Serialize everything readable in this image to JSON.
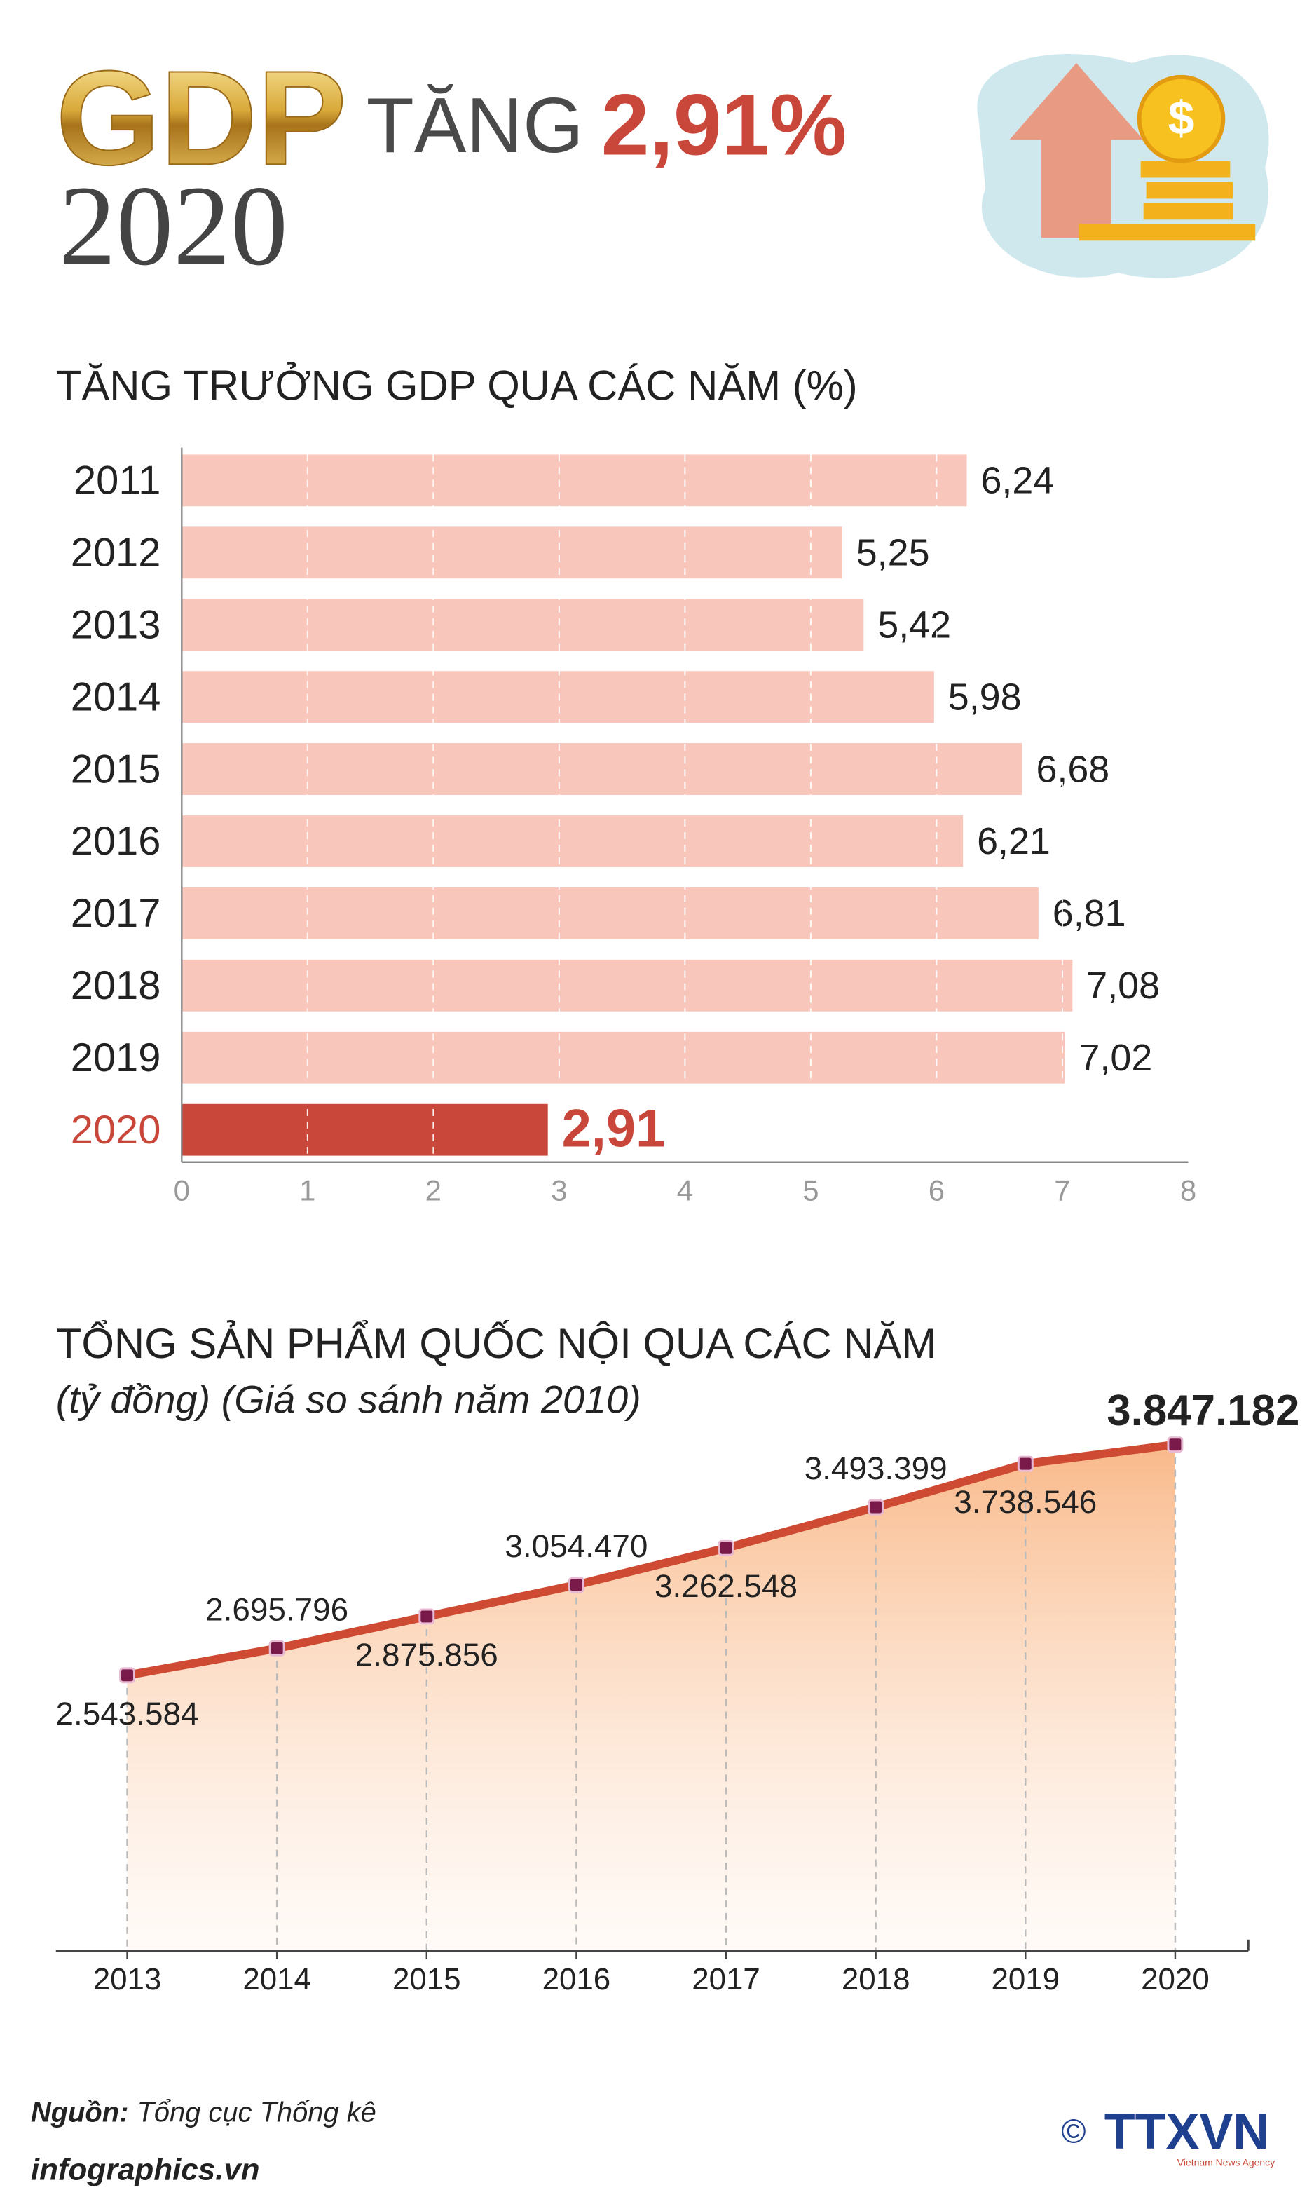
{
  "header": {
    "title": "GDP",
    "year": "2020",
    "prefix": "TĂNG",
    "highlight": "2,91%"
  },
  "chart_data": [
    {
      "type": "bar",
      "title": "TĂNG TRƯỞNG GDP QUA CÁC NĂM (%)",
      "categories": [
        "2011",
        "2012",
        "2013",
        "2014",
        "2015",
        "2016",
        "2017",
        "2018",
        "2019",
        "2020"
      ],
      "values": [
        6.24,
        5.25,
        5.42,
        5.98,
        6.68,
        6.21,
        6.81,
        7.08,
        7.02,
        2.91
      ],
      "value_labels": [
        "6,24",
        "5,25",
        "5,42",
        "5,98",
        "6,68",
        "6,21",
        "6,81",
        "7,08",
        "7,02",
        "2,91"
      ],
      "colors": [
        "#f8c6bb",
        "#f8c6bb",
        "#f8c6bb",
        "#f8c6bb",
        "#f8c6bb",
        "#f8c6bb",
        "#f8c6bb",
        "#f8c6bb",
        "#f8c6bb",
        "#c9473a"
      ],
      "xlim": [
        0,
        8
      ],
      "xticks": [
        0,
        1,
        2,
        3,
        4,
        5,
        6,
        7,
        8
      ],
      "grid": true
    },
    {
      "type": "line",
      "title": "TỔNG SẢN PHẨM QUỐC NỘI QUA CÁC NĂM",
      "subtitle": "(tỷ đồng) (Giá so sánh năm 2010)",
      "categories": [
        "2013",
        "2014",
        "2015",
        "2016",
        "2017",
        "2018",
        "2019",
        "2020"
      ],
      "values": [
        2543584,
        2695796,
        2875856,
        3054470,
        3262548,
        3493399,
        3738546,
        3847182
      ],
      "value_labels": [
        "2.543.584",
        "2.695.796",
        "2.875.856",
        "3.054.470",
        "3.262.548",
        "3.493.399",
        "3.738.546",
        "3.847.182"
      ],
      "color": "#cf4a33",
      "marker_color": "#7a1a4a"
    }
  ],
  "footer": {
    "source_label": "Nguồn:",
    "source": "Tổng cục Thống kê",
    "site": "infographics.vn",
    "copyright": "©",
    "brand": "TTXVN",
    "brand_sub": "Vietnam News Agency"
  }
}
